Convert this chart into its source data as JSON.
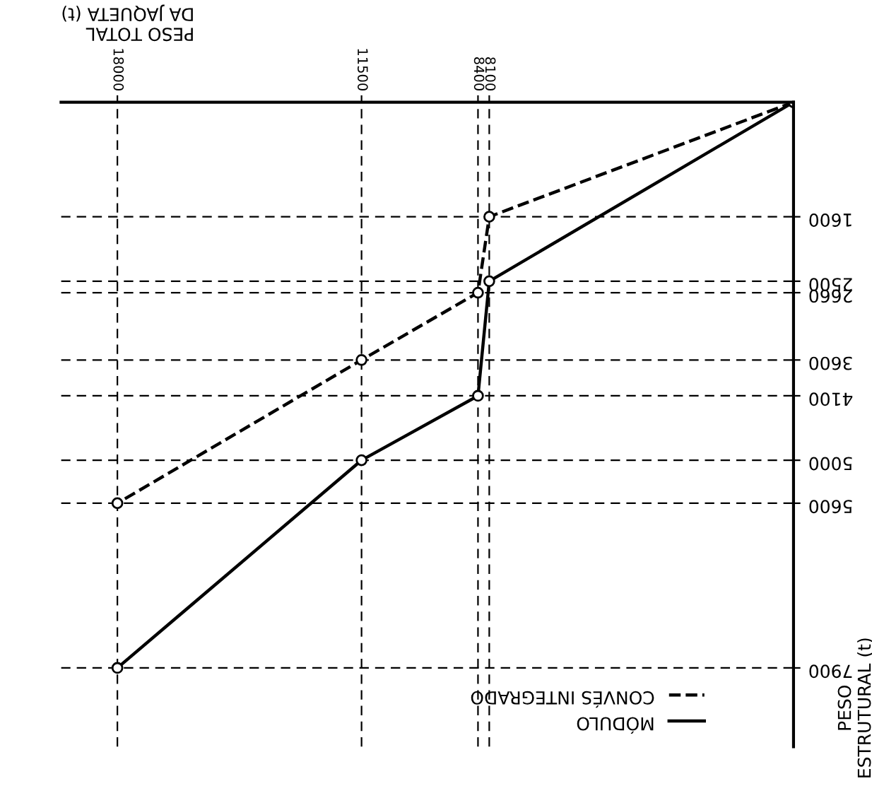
{
  "chart_data": {
    "type": "line",
    "xlabel": "PESO TOTAL\nDA JAQUETA (t)",
    "ylabel": "PESO\nESTRUTURAL (t)",
    "xlim": [
      19500,
      0
    ],
    "ylim": [
      9000,
      0
    ],
    "xticks": [
      8100,
      8400,
      11500,
      18000
    ],
    "yticks": [
      1600,
      2500,
      2660,
      3600,
      4100,
      5000,
      5600,
      7900
    ],
    "series": [
      {
        "name": "CONVÉS INTEGRADO",
        "color": "#000000",
        "line_style": "dashed",
        "x": [
          0,
          8100,
          8400,
          11500,
          18000
        ],
        "values": [
          0,
          1600,
          2660,
          3600,
          5600
        ]
      },
      {
        "name": "MÓDULO",
        "color": "#000000",
        "line_style": "solid",
        "x": [
          0,
          8100,
          8400,
          11500,
          18000
        ],
        "values": [
          0,
          2500,
          4100,
          5000,
          7900
        ]
      }
    ],
    "marker": "circle",
    "grid": true,
    "legend": "lower right"
  }
}
